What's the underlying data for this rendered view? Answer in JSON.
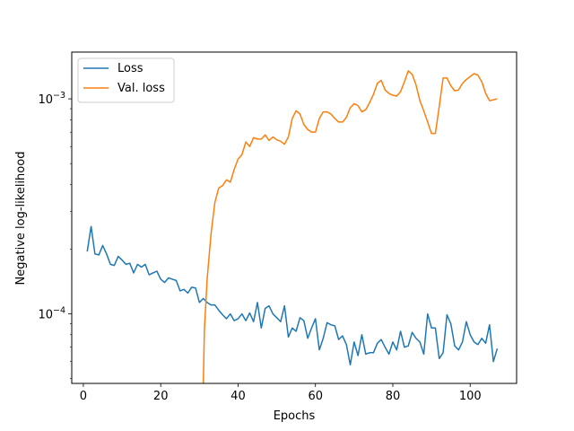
{
  "chart_data": {
    "type": "line",
    "title": "",
    "xlabel": "Epochs",
    "ylabel": "Negative log-likelihood",
    "yscale": "log",
    "xlim": [
      -3,
      112
    ],
    "ylim": [
      4.75e-05,
      0.00165
    ],
    "grid": false,
    "legend_position": "top-left",
    "x_ticks": [
      {
        "value": 0,
        "label": "0"
      },
      {
        "value": 20,
        "label": "20"
      },
      {
        "value": 40,
        "label": "40"
      },
      {
        "value": 60,
        "label": "60"
      },
      {
        "value": 80,
        "label": "80"
      },
      {
        "value": 100,
        "label": "100"
      }
    ],
    "y_ticks": [
      {
        "value": 0.0001,
        "base": "10",
        "exponent": "−4"
      },
      {
        "value": 0.001,
        "base": "10",
        "exponent": "−3"
      }
    ],
    "series": [
      {
        "name": "Loss",
        "color": "#1f77b4",
        "x": [
          1,
          2,
          3,
          4,
          5,
          6,
          7,
          8,
          9,
          10,
          11,
          12,
          13,
          14,
          15,
          16,
          17,
          18,
          19,
          20,
          21,
          22,
          23,
          24,
          25,
          26,
          27,
          28,
          29,
          30,
          31,
          32,
          33,
          34,
          35,
          36,
          37,
          38,
          39,
          40,
          41,
          42,
          43,
          44,
          45,
          46,
          47,
          48,
          49,
          50,
          51,
          52,
          53,
          54,
          55,
          56,
          57,
          58,
          59,
          60,
          61,
          62,
          63,
          64,
          65,
          66,
          67,
          68,
          69,
          70,
          71,
          72,
          73,
          74,
          75,
          76,
          77,
          78,
          79,
          80,
          81,
          82,
          83,
          84,
          85,
          86,
          87,
          88,
          89,
          90,
          91,
          92,
          93,
          94,
          95,
          96,
          97,
          98,
          99,
          100,
          101,
          102,
          103,
          104,
          105,
          106,
          107
        ],
        "values": [
          0.000195,
          0.000255,
          0.00019,
          0.000188,
          0.000208,
          0.00019,
          0.00017,
          0.000168,
          0.000185,
          0.000178,
          0.00017,
          0.000172,
          0.000155,
          0.00017,
          0.000165,
          0.00017,
          0.000152,
          0.000155,
          0.000158,
          0.000145,
          0.00014,
          0.000147,
          0.000145,
          0.000143,
          0.000128,
          0.00013,
          0.000125,
          0.000133,
          0.000132,
          0.000113,
          0.000118,
          0.000113,
          0.00011,
          0.00011,
          0.000104,
          9.9e-05,
          9.5e-05,
          0.0001,
          9.3e-05,
          9.5e-05,
          0.0001,
          9.3e-05,
          0.000101,
          9.2e-05,
          0.000113,
          8.6e-05,
          0.000106,
          0.000109,
          0.0001,
          9.6e-05,
          9.2e-05,
          0.000109,
          7.8e-05,
          8.6e-05,
          8.3e-05,
          9.6e-05,
          9.3e-05,
          7.7e-05,
          8.6e-05,
          9.5e-05,
          6.8e-05,
          7.7e-05,
          9.1e-05,
          8.9e-05,
          8.8e-05,
          7.6e-05,
          7.9e-05,
          7.2e-05,
          5.8e-05,
          7.4e-05,
          6.4e-05,
          8e-05,
          6.5e-05,
          6.6e-05,
          6.6e-05,
          7.3e-05,
          7.6e-05,
          7e-05,
          6.5e-05,
          7.4e-05,
          6.8e-05,
          8.3e-05,
          7e-05,
          7.1e-05,
          8.2e-05,
          7.7e-05,
          7.4e-05,
          6.5e-05,
          0.0001,
          8.6e-05,
          8.6e-05,
          6.2e-05,
          6.6e-05,
          9.9e-05,
          9e-05,
          7.1e-05,
          6.8e-05,
          7.4e-05,
          9.2e-05,
          8e-05,
          7.4e-05,
          7.2e-05,
          7.7e-05,
          7.3e-05,
          8.9e-05,
          6e-05,
          6.9e-05
        ]
      },
      {
        "name": "Val. loss",
        "color": "#ff7f0e",
        "x": [
          31,
          31.3,
          32,
          33,
          34,
          35,
          36,
          37,
          38,
          39,
          40,
          41,
          42,
          43,
          44,
          45,
          46,
          47,
          48,
          49,
          50,
          51,
          52,
          53,
          54,
          55,
          56,
          57,
          58,
          59,
          60,
          61,
          62,
          63,
          64,
          65,
          66,
          67,
          68,
          69,
          70,
          71,
          72,
          73,
          74,
          75,
          76,
          77,
          78,
          79,
          80,
          81,
          82,
          83,
          84,
          85,
          86,
          87,
          88,
          89,
          90,
          91,
          92,
          93,
          94,
          95,
          96,
          97,
          98,
          99,
          100,
          101,
          102,
          103,
          104,
          105,
          106,
          107
        ],
        "values": [
          4.7e-05,
          8.5e-05,
          0.000145,
          0.000235,
          0.00033,
          0.000385,
          0.000395,
          0.00042,
          0.00041,
          0.00047,
          0.000525,
          0.00055,
          0.00063,
          0.0006,
          0.00066,
          0.00065,
          0.00065,
          0.00068,
          0.00064,
          0.000665,
          0.000645,
          0.000635,
          0.000615,
          0.000665,
          0.00081,
          0.00088,
          0.00085,
          0.00076,
          0.00072,
          0.0007,
          0.0007,
          0.00081,
          0.00087,
          0.00087,
          0.00085,
          0.00081,
          0.00078,
          0.00078,
          0.00082,
          0.00091,
          0.00095,
          0.00093,
          0.00087,
          0.00089,
          0.00096,
          0.00105,
          0.00118,
          0.00122,
          0.0011,
          0.00106,
          0.00104,
          0.00103,
          0.00108,
          0.0012,
          0.00135,
          0.0013,
          0.00116,
          0.00098,
          0.00088,
          0.00078,
          0.00069,
          0.00069,
          0.00092,
          0.00125,
          0.00125,
          0.00115,
          0.00109,
          0.0011,
          0.00118,
          0.00123,
          0.00127,
          0.00131,
          0.00129,
          0.0012,
          0.00106,
          0.00098,
          0.00099,
          0.001
        ]
      }
    ]
  }
}
